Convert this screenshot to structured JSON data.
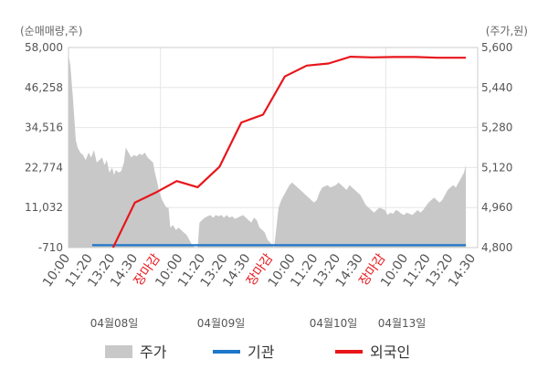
{
  "chart_data": {
    "type": "area",
    "left_axis_unit": "(순매매량,주)",
    "right_axis_unit": "(주가,원)",
    "left_ticks": [
      "58,000",
      "46,258",
      "34,516",
      "22,774",
      "11,032",
      "-710"
    ],
    "left_ylim": [
      -710,
      58000
    ],
    "right_ticks": [
      "5,600",
      "5,440",
      "5,280",
      "5,120",
      "4,960",
      "4,800"
    ],
    "right_ylim": [
      4800,
      5600
    ],
    "x_ticks": [
      {
        "label": "10:00",
        "marker": false
      },
      {
        "label": "11:20",
        "marker": false
      },
      {
        "label": "13:20",
        "marker": false
      },
      {
        "label": "14:30",
        "marker": false
      },
      {
        "label": "장마감",
        "marker": true
      },
      {
        "label": "10:00",
        "marker": false
      },
      {
        "label": "11:20",
        "marker": false
      },
      {
        "label": "13:20",
        "marker": false
      },
      {
        "label": "14:30",
        "marker": false
      },
      {
        "label": "장마감",
        "marker": true
      },
      {
        "label": "10:00",
        "marker": false
      },
      {
        "label": "11:20",
        "marker": false
      },
      {
        "label": "13:20",
        "marker": false
      },
      {
        "label": "14:30",
        "marker": false
      },
      {
        "label": "장마감",
        "marker": true
      },
      {
        "label": "10:00",
        "marker": false
      },
      {
        "label": "11:20",
        "marker": false
      },
      {
        "label": "13:20",
        "marker": false
      },
      {
        "label": "14:30",
        "marker": false
      }
    ],
    "dates": [
      "04월08일",
      "04월09일",
      "04월10일",
      "04월13일"
    ],
    "grid": true,
    "legend_position": "bottom",
    "series": [
      {
        "name": "주가",
        "axis": "right",
        "style": "area",
        "color": "#c8c8c8",
        "points": [
          [
            0,
            5567
          ],
          [
            0.2,
            5530
          ],
          [
            0.5,
            5390
          ],
          [
            0.8,
            5230
          ],
          [
            1.0,
            5200
          ],
          [
            1.3,
            5180
          ],
          [
            1.6,
            5170
          ],
          [
            1.9,
            5150
          ],
          [
            2.2,
            5180
          ],
          [
            2.5,
            5160
          ],
          [
            2.8,
            5190
          ],
          [
            3.1,
            5140
          ],
          [
            3.4,
            5150
          ],
          [
            3.7,
            5160
          ],
          [
            3.95,
            5130
          ],
          [
            4.2,
            5150
          ],
          [
            4.5,
            5100
          ],
          [
            4.8,
            5120
          ],
          [
            5.0,
            5090
          ],
          [
            5.2,
            5110
          ],
          [
            5.5,
            5100
          ],
          [
            5.8,
            5105
          ],
          [
            6.1,
            5140
          ],
          [
            6.3,
            5200
          ],
          [
            6.6,
            5180
          ],
          [
            6.9,
            5160
          ],
          [
            7.2,
            5170
          ],
          [
            7.5,
            5165
          ],
          [
            7.8,
            5175
          ],
          [
            8.1,
            5170
          ],
          [
            8.4,
            5180
          ],
          [
            8.7,
            5160
          ],
          [
            9.0,
            5150
          ],
          [
            9.3,
            5140
          ],
          [
            9.5,
            5100
          ],
          [
            9.7,
            5070
          ],
          [
            10.0,
            5020
          ],
          [
            10.3,
            4990
          ],
          [
            10.6,
            4970
          ],
          [
            10.8,
            4960
          ],
          [
            11.0,
            4960
          ],
          [
            11.2,
            4880
          ],
          [
            11.5,
            4890
          ],
          [
            11.8,
            4870
          ],
          [
            12.1,
            4880
          ],
          [
            12.4,
            4870
          ],
          [
            12.7,
            4860
          ],
          [
            13.0,
            4850
          ],
          [
            13.3,
            4830
          ],
          [
            13.6,
            4810
          ],
          [
            13.9,
            4800
          ],
          [
            14.2,
            4800
          ],
          [
            14.4,
            4900
          ],
          [
            14.7,
            4910
          ],
          [
            15.0,
            4920
          ],
          [
            15.3,
            4925
          ],
          [
            15.6,
            4930
          ],
          [
            15.9,
            4920
          ],
          [
            16.2,
            4930
          ],
          [
            16.5,
            4925
          ],
          [
            16.8,
            4930
          ],
          [
            17.1,
            4920
          ],
          [
            17.4,
            4930
          ],
          [
            17.7,
            4920
          ],
          [
            18.0,
            4925
          ],
          [
            18.3,
            4915
          ],
          [
            18.6,
            4920
          ],
          [
            18.9,
            4925
          ],
          [
            19.2,
            4930
          ],
          [
            19.5,
            4920
          ],
          [
            19.8,
            4910
          ],
          [
            20.1,
            4900
          ],
          [
            20.4,
            4920
          ],
          [
            20.7,
            4910
          ],
          [
            21.0,
            4880
          ],
          [
            21.3,
            4870
          ],
          [
            21.6,
            4860
          ],
          [
            21.9,
            4830
          ],
          [
            22.2,
            4820
          ],
          [
            22.6,
            4800
          ],
          [
            22.8,
            4860
          ],
          [
            23.1,
            4960
          ],
          [
            23.4,
            4990
          ],
          [
            23.7,
            5010
          ],
          [
            24.0,
            5030
          ],
          [
            24.3,
            5050
          ],
          [
            24.6,
            5060
          ],
          [
            24.9,
            5050
          ],
          [
            25.2,
            5040
          ],
          [
            25.5,
            5030
          ],
          [
            25.8,
            5020
          ],
          [
            26.1,
            5010
          ],
          [
            26.4,
            5000
          ],
          [
            26.7,
            4990
          ],
          [
            27.0,
            4980
          ],
          [
            27.3,
            4990
          ],
          [
            27.6,
            5020
          ],
          [
            27.9,
            5040
          ],
          [
            28.2,
            5045
          ],
          [
            28.5,
            5050
          ],
          [
            28.8,
            5040
          ],
          [
            29.1,
            5045
          ],
          [
            29.4,
            5050
          ],
          [
            29.7,
            5060
          ],
          [
            30.0,
            5050
          ],
          [
            30.3,
            5040
          ],
          [
            30.6,
            5030
          ],
          [
            30.9,
            5050
          ],
          [
            31.2,
            5040
          ],
          [
            31.5,
            5030
          ],
          [
            31.8,
            5020
          ],
          [
            32.1,
            5010
          ],
          [
            32.4,
            4990
          ],
          [
            32.7,
            4970
          ],
          [
            33.0,
            4960
          ],
          [
            33.3,
            4950
          ],
          [
            33.6,
            4940
          ],
          [
            33.9,
            4950
          ],
          [
            34.2,
            4960
          ],
          [
            34.5,
            4955
          ],
          [
            34.8,
            4950
          ],
          [
            35.1,
            4930
          ],
          [
            35.4,
            4940
          ],
          [
            35.7,
            4935
          ],
          [
            36.0,
            4950
          ],
          [
            36.3,
            4945
          ],
          [
            36.6,
            4935
          ],
          [
            36.9,
            4930
          ],
          [
            37.2,
            4940
          ],
          [
            37.5,
            4935
          ],
          [
            37.8,
            4930
          ],
          [
            38.1,
            4940
          ],
          [
            38.4,
            4950
          ],
          [
            38.7,
            4940
          ],
          [
            39.0,
            4950
          ],
          [
            39.3,
            4965
          ],
          [
            39.6,
            4980
          ],
          [
            39.9,
            4990
          ],
          [
            40.2,
            5000
          ],
          [
            40.5,
            4990
          ],
          [
            40.8,
            4980
          ],
          [
            41.1,
            4990
          ],
          [
            41.4,
            5010
          ],
          [
            41.7,
            5030
          ],
          [
            42.0,
            5040
          ],
          [
            42.3,
            5050
          ],
          [
            42.6,
            5040
          ],
          [
            42.9,
            5060
          ],
          [
            43.2,
            5080
          ],
          [
            43.5,
            5100
          ],
          [
            43.7,
            5130
          ]
        ]
      },
      {
        "name": "기관",
        "axis": "left",
        "style": "line",
        "color": "#1f77c9",
        "points": [
          [
            2.6,
            0
          ],
          [
            43.7,
            0
          ]
        ]
      },
      {
        "name": "외국인",
        "axis": "left",
        "style": "line",
        "color": "#e8151b",
        "points": [
          [
            4.9,
            -710
          ],
          [
            7.3,
            12500
          ],
          [
            9.7,
            15600
          ],
          [
            11.9,
            18800
          ],
          [
            14.2,
            17000
          ],
          [
            16.6,
            23000
          ],
          [
            19.0,
            36000
          ],
          [
            21.4,
            38300
          ],
          [
            23.8,
            49500
          ],
          [
            26.2,
            52700
          ],
          [
            28.6,
            53300
          ],
          [
            31.0,
            55300
          ],
          [
            33.4,
            55100
          ],
          [
            35.8,
            55200
          ],
          [
            38.2,
            55200
          ],
          [
            40.6,
            55000
          ],
          [
            43.7,
            55000
          ]
        ]
      }
    ]
  },
  "legend": [
    {
      "label": "주가",
      "kind": "area",
      "color": "#c8c8c8"
    },
    {
      "label": "기관",
      "kind": "line",
      "color": "#1f77c9"
    },
    {
      "label": "외국인",
      "kind": "line",
      "color": "#e8151b"
    }
  ]
}
